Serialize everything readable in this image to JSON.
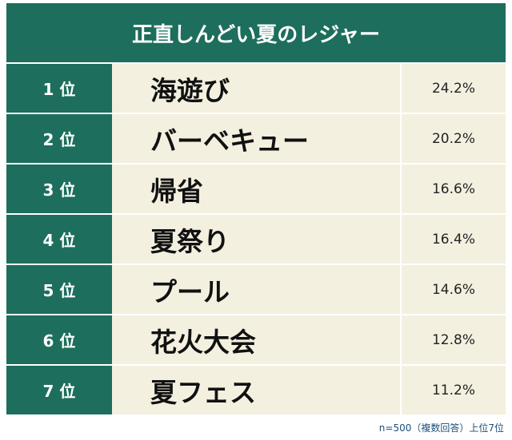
{
  "header": {
    "title": "正直しんどい夏のレジャー"
  },
  "table": {
    "rows": [
      [
        "1 位",
        "海遊び",
        "24.2%"
      ],
      [
        "2 位",
        "バーベキュー",
        "20.2%"
      ],
      [
        "3 位",
        "帰省",
        "16.6%"
      ],
      [
        "4 位",
        "夏祭り",
        "16.4%"
      ],
      [
        "5 位",
        "プール",
        "14.6%"
      ],
      [
        "6 位",
        "花火大会",
        "12.8%"
      ],
      [
        "7 位",
        "夏フェス",
        "11.2%"
      ]
    ]
  },
  "footnote": "n=500（複数回答）上位7位"
}
